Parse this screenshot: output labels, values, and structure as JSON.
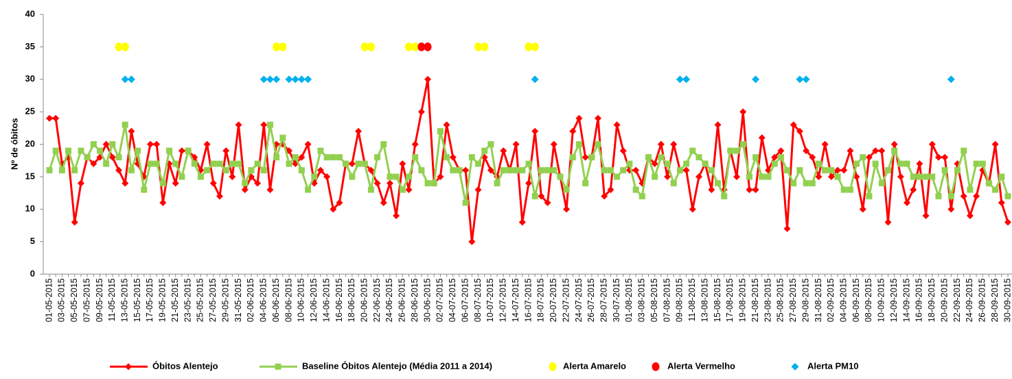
{
  "chart_data": {
    "type": "line",
    "y_label": "Nº de óbitos",
    "ylim": [
      0,
      40
    ],
    "yticks": [
      0,
      5,
      10,
      15,
      20,
      25,
      30,
      35,
      40
    ],
    "categories": [
      "01-05-2015",
      null,
      "03-05-2015",
      null,
      "05-05-2015",
      null,
      "07-05-2015",
      null,
      "09-05-2015",
      null,
      "11-05-2015",
      null,
      "13-05-2015",
      null,
      "15-05-2015",
      null,
      "17-05-2015",
      null,
      "19-05-2015",
      null,
      "21-05-2015",
      null,
      "23-05-2015",
      null,
      "25-05-2015",
      null,
      "27-05-2015",
      null,
      "29-05-2015",
      null,
      "31-05-2015",
      null,
      "02-06-2015",
      null,
      "04-06-2015",
      null,
      "06-06-2015",
      null,
      "08-06-2015",
      null,
      "10-06-2015",
      null,
      "12-06-2015",
      null,
      "14-06-2015",
      null,
      "16-06-2015",
      null,
      "18-06-2015",
      null,
      "20-06-2015",
      null,
      "22-06-2015",
      null,
      "24-06-2015",
      null,
      "26-06-2015",
      null,
      "28-06-2015",
      null,
      "30-06-2015",
      null,
      "02-07-2015",
      null,
      "04-07-2015",
      null,
      "06-07-2015",
      null,
      "08-07-2015",
      null,
      "10-07-2015",
      null,
      "12-07-2015",
      null,
      "14-07-2015",
      null,
      "16-07-2015",
      null,
      "18-07-2015",
      null,
      "20-07-2015",
      null,
      "22-07-2015",
      null,
      "24-07-2015",
      null,
      "26-07-2015",
      null,
      "28-07-2015",
      null,
      "30-07-2015",
      null,
      "01-08-2015",
      null,
      "03-08-2015",
      null,
      "05-08-2015",
      null,
      "07-08-2015",
      null,
      "09-08-2015",
      null,
      "11-08-2015",
      null,
      "13-08-2015",
      null,
      "15-08-2015",
      null,
      "17-08-2015",
      null,
      "19-08-2015",
      null,
      "21-08-2015",
      null,
      "23-08-2015",
      null,
      "25-08-2015",
      null,
      "27-08-2015",
      null,
      "29-08-2015",
      null,
      "31-08-2015",
      null,
      "02-09-2015",
      null,
      "04-09-2015",
      null,
      "06-09-2015",
      null,
      "08-09-2015",
      null,
      "10-09-2015",
      null,
      "12-09-2015",
      null,
      "14-09-2015",
      null,
      "16-09-2015",
      null,
      "18-09-2015",
      null,
      "20-09-2015",
      null,
      "22-09-2015",
      null,
      "24-09-2015",
      null,
      "26-09-2015",
      null,
      "28-09-2015",
      null,
      "30-09-2015"
    ],
    "series": [
      {
        "name": "Óbitos Alentejo",
        "color": "#ff0000",
        "marker": "diamond",
        "line": true,
        "values": [
          24,
          24,
          17,
          18,
          8,
          14,
          18,
          17,
          18,
          20,
          18,
          16,
          14,
          22,
          17,
          15,
          20,
          20,
          11,
          17,
          14,
          19,
          19,
          18,
          16,
          20,
          14,
          12,
          19,
          15,
          23,
          13,
          15,
          14,
          23,
          13,
          20,
          20,
          19,
          17,
          18,
          20,
          14,
          16,
          15,
          10,
          11,
          17,
          17,
          22,
          17,
          16,
          14,
          11,
          14,
          9,
          17,
          13,
          20,
          25,
          30,
          14,
          15,
          23,
          18,
          16,
          16,
          5,
          13,
          18,
          16,
          15,
          19,
          16,
          20,
          8,
          14,
          22,
          12,
          11,
          20,
          15,
          10,
          22,
          24,
          18,
          18,
          24,
          12,
          13,
          23,
          19,
          16,
          16,
          14,
          18,
          17,
          20,
          15,
          20,
          16,
          16,
          10,
          15,
          17,
          13,
          23,
          13,
          19,
          15,
          25,
          13,
          13,
          21,
          16,
          18,
          19,
          7,
          23,
          22,
          19,
          18,
          15,
          20,
          15,
          16,
          16,
          19,
          15,
          10,
          18,
          19,
          19,
          8,
          20,
          15,
          11,
          13,
          17,
          9,
          20,
          18,
          18,
          10,
          17,
          12,
          9,
          12,
          16,
          14,
          20,
          11,
          8
        ]
      },
      {
        "name": "Baseline Óbitos Alentejo (Média 2011 a 2014)",
        "color": "#92d050",
        "marker": "square",
        "line": true,
        "values": [
          16,
          19,
          16,
          19,
          16,
          19,
          18,
          20,
          19,
          17,
          20,
          18,
          23,
          16,
          19,
          13,
          17,
          17,
          14,
          19,
          17,
          15,
          19,
          17,
          15,
          16,
          17,
          17,
          16,
          17,
          17,
          14,
          16,
          17,
          16,
          23,
          18,
          21,
          17,
          18,
          16,
          13,
          15,
          19,
          18,
          18,
          18,
          17,
          15,
          17,
          17,
          13,
          18,
          20,
          15,
          15,
          13,
          15,
          18,
          16,
          14,
          14,
          22,
          18,
          16,
          16,
          11,
          18,
          17,
          19,
          20,
          14,
          16,
          16,
          16,
          16,
          17,
          12,
          16,
          16,
          16,
          15,
          13,
          18,
          20,
          14,
          18,
          20,
          16,
          16,
          15,
          16,
          17,
          13,
          12,
          18,
          15,
          18,
          17,
          14,
          16,
          17,
          19,
          18,
          17,
          16,
          14,
          12,
          19,
          19,
          20,
          15,
          18,
          15,
          15,
          17,
          18,
          16,
          14,
          16,
          14,
          14,
          17,
          16,
          16,
          15,
          13,
          13,
          17,
          18,
          12,
          17,
          14,
          16,
          19,
          17,
          17,
          15,
          15,
          15,
          15,
          12,
          16,
          12,
          16,
          19,
          13,
          17,
          17,
          14,
          13,
          15,
          12
        ]
      },
      {
        "name": "Alerta Amarelo",
        "color": "#ffff00",
        "marker": "circle",
        "line": false,
        "values": [
          null,
          null,
          null,
          null,
          null,
          null,
          null,
          null,
          null,
          null,
          null,
          35,
          35,
          null,
          null,
          null,
          null,
          null,
          null,
          null,
          null,
          null,
          null,
          null,
          null,
          null,
          null,
          null,
          null,
          null,
          null,
          null,
          null,
          null,
          null,
          null,
          35,
          35,
          null,
          null,
          null,
          null,
          null,
          null,
          null,
          null,
          null,
          null,
          null,
          null,
          35,
          35,
          null,
          null,
          null,
          null,
          null,
          35,
          35,
          null,
          null,
          null,
          null,
          null,
          null,
          null,
          null,
          null,
          35,
          35,
          null,
          null,
          null,
          null,
          null,
          null,
          35,
          35,
          null,
          null,
          null,
          null,
          null,
          null,
          null,
          null,
          null,
          null,
          null,
          null,
          null,
          null,
          null,
          null,
          null,
          null,
          null,
          null,
          null,
          null,
          null,
          null,
          null,
          null,
          null,
          null,
          null,
          null,
          null,
          null,
          null,
          null,
          null,
          null,
          null,
          null,
          null,
          null,
          null,
          null,
          null,
          null,
          null,
          null,
          null,
          null,
          null,
          null,
          null,
          null,
          null,
          null,
          null,
          null,
          null,
          null,
          null,
          null,
          null,
          null,
          null,
          null,
          null,
          null,
          null,
          null,
          null,
          null,
          null,
          null,
          null,
          null,
          null
        ]
      },
      {
        "name": "Alerta Vermelho",
        "color": "#ff0000",
        "marker": "circle",
        "line": false,
        "values": [
          null,
          null,
          null,
          null,
          null,
          null,
          null,
          null,
          null,
          null,
          null,
          null,
          null,
          null,
          null,
          null,
          null,
          null,
          null,
          null,
          null,
          null,
          null,
          null,
          null,
          null,
          null,
          null,
          null,
          null,
          null,
          null,
          null,
          null,
          null,
          null,
          null,
          null,
          null,
          null,
          null,
          null,
          null,
          null,
          null,
          null,
          null,
          null,
          null,
          null,
          null,
          null,
          null,
          null,
          null,
          null,
          null,
          null,
          null,
          35,
          35,
          null,
          null,
          null,
          null,
          null,
          null,
          null,
          null,
          null,
          null,
          null,
          null,
          null,
          null,
          null,
          null,
          null,
          null,
          null,
          null,
          null,
          null,
          null,
          null,
          null,
          null,
          null,
          null,
          null,
          null,
          null,
          null,
          null,
          null,
          null,
          null,
          null,
          null,
          null,
          null,
          null,
          null,
          null,
          null,
          null,
          null,
          null,
          null,
          null,
          null,
          null,
          null,
          null,
          null,
          null,
          null,
          null,
          null,
          null,
          null,
          null,
          null,
          null,
          null,
          null,
          null,
          null,
          null,
          null,
          null,
          null,
          null,
          null,
          null,
          null,
          null,
          null,
          null,
          null,
          null,
          null,
          null,
          null,
          null,
          null,
          null,
          null,
          null,
          null,
          null,
          null,
          null
        ]
      },
      {
        "name": "Alerta PM10",
        "color": "#00b0f0",
        "marker": "diamond",
        "line": false,
        "values": [
          null,
          null,
          null,
          null,
          null,
          null,
          null,
          null,
          null,
          null,
          null,
          null,
          30,
          30,
          null,
          null,
          null,
          null,
          null,
          null,
          null,
          null,
          null,
          null,
          null,
          null,
          null,
          null,
          null,
          null,
          null,
          null,
          null,
          null,
          30,
          30,
          30,
          null,
          30,
          30,
          30,
          30,
          null,
          null,
          null,
          null,
          null,
          null,
          null,
          null,
          null,
          null,
          null,
          null,
          null,
          null,
          null,
          null,
          null,
          null,
          null,
          null,
          null,
          null,
          null,
          null,
          null,
          null,
          null,
          null,
          null,
          null,
          null,
          null,
          null,
          null,
          null,
          30,
          null,
          null,
          null,
          null,
          null,
          null,
          null,
          null,
          null,
          null,
          null,
          null,
          null,
          null,
          null,
          null,
          null,
          null,
          null,
          null,
          null,
          null,
          30,
          30,
          null,
          null,
          null,
          null,
          null,
          null,
          null,
          null,
          null,
          null,
          30,
          null,
          null,
          null,
          null,
          null,
          null,
          30,
          30,
          null,
          null,
          null,
          null,
          null,
          null,
          null,
          null,
          null,
          null,
          null,
          null,
          null,
          null,
          null,
          null,
          null,
          null,
          null,
          null,
          null,
          null,
          30,
          null,
          null,
          null,
          null,
          null,
          null,
          null,
          null,
          null
        ]
      }
    ]
  }
}
